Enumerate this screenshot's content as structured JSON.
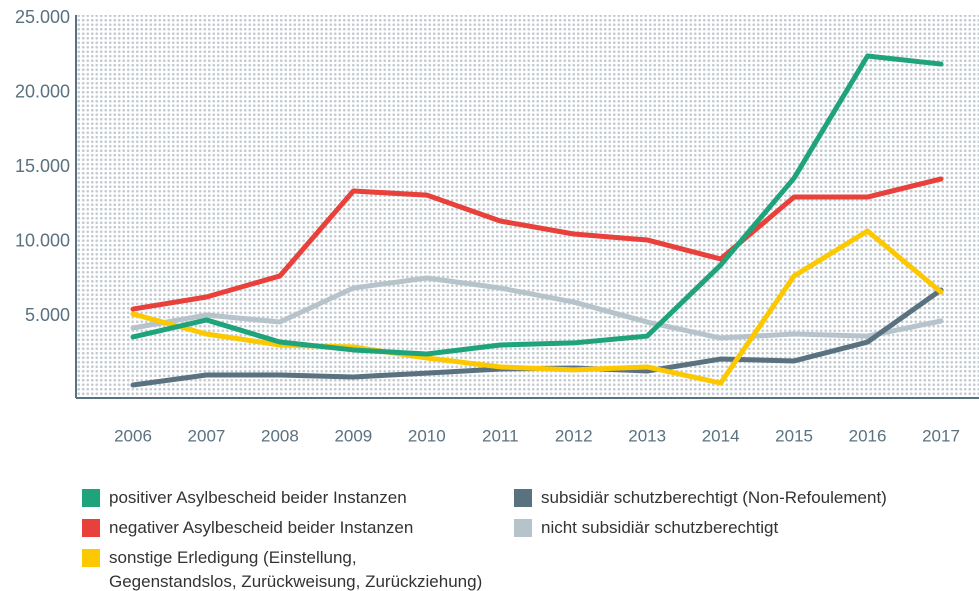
{
  "chart_data": {
    "type": "line",
    "categories": [
      "2006",
      "2007",
      "2008",
      "2009",
      "2010",
      "2011",
      "2012",
      "2013",
      "2014",
      "2015",
      "2016",
      "2017"
    ],
    "ylim": [
      0,
      25000
    ],
    "yticks": [
      {
        "value": 5000,
        "label": "5.000"
      },
      {
        "value": 10000,
        "label": "10.000"
      },
      {
        "value": 15000,
        "label": "15.000"
      },
      {
        "value": 20000,
        "label": "20.000"
      },
      {
        "value": 25000,
        "label": "25.000"
      }
    ],
    "series": [
      {
        "name": "positiver Asylbescheid beider Instanzen",
        "color": "#1fa37a",
        "values": [
          3890,
          5030,
          3550,
          3020,
          2750,
          3350,
          3490,
          3950,
          8710,
          14540,
          22720,
          22180
        ]
      },
      {
        "name": "negativer Asylbescheid beider Instanzen",
        "color": "#e8403a",
        "values": [
          5760,
          6570,
          7980,
          13670,
          13400,
          11660,
          10790,
          10390,
          9115,
          13270,
          13270,
          14480
        ]
      },
      {
        "name": "sonstige Erledigung (Einstellung,\nGegenstandslos, Zurückweisung, Zurückziehung)",
        "color": "#fcc800",
        "values": [
          5430,
          4090,
          3350,
          3220,
          2480,
          1880,
          1680,
          1880,
          800,
          7980,
          10990,
          6900
        ]
      },
      {
        "name": "subsidiär schutzberechtigt (Non-Refoulement)",
        "color": "#5a7180",
        "values": [
          670,
          1340,
          1340,
          1210,
          1470,
          1740,
          1810,
          1610,
          2410,
          2280,
          3550,
          7040
        ]
      },
      {
        "name": "nicht subsidiär schutzberechtigt",
        "color": "#b7c3cb",
        "values": [
          4490,
          5360,
          4890,
          7170,
          7840,
          7170,
          6230,
          4890,
          3820,
          4090,
          3950,
          4960
        ]
      }
    ]
  }
}
